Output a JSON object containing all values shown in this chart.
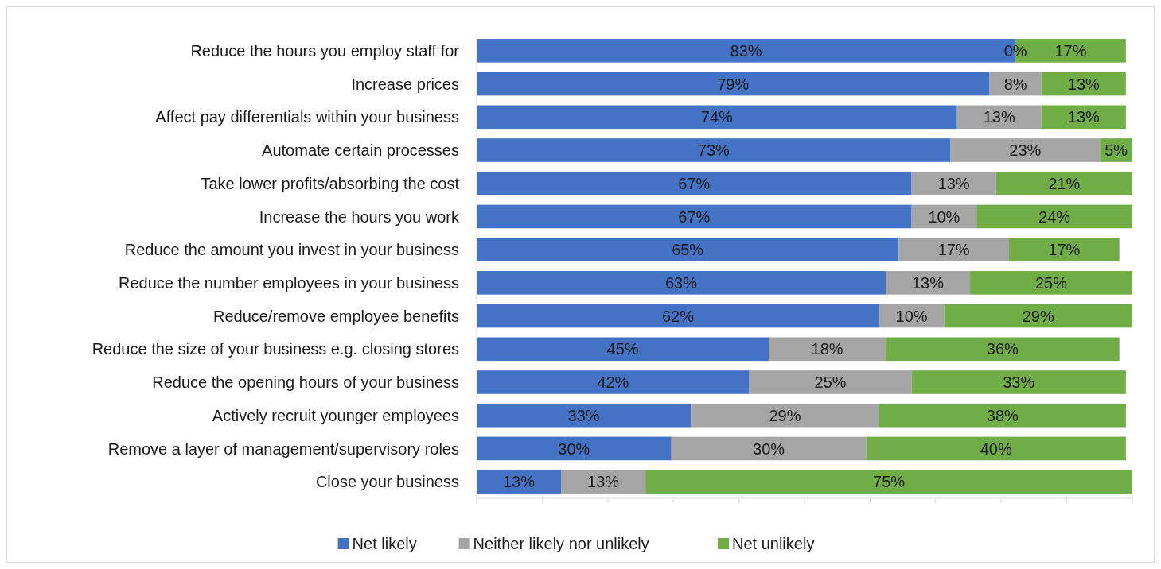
{
  "chart_data": {
    "type": "bar",
    "orientation": "horizontal",
    "stacked": true,
    "legend": "bottom",
    "tick_labels": "y",
    "categories": [
      "Reduce the hours you employ staff for",
      "Increase prices",
      "Affect pay differentials within your business",
      "Automate certain processes",
      "Take lower profits/absorbing the cost",
      "Increase the hours you work",
      "Reduce the amount you invest in your business",
      "Reduce the number employees in your business",
      "Reduce/remove employee benefits",
      "Reduce the size of your business e.g. closing stores",
      "Reduce the opening hours of your business",
      "Actively recruit younger employees",
      "Remove a layer of management/supervisory roles",
      "Close your business"
    ],
    "series": [
      {
        "name": "Net likely",
        "color": "#4472c4",
        "values": [
          83,
          79,
          74,
          73,
          67,
          67,
          65,
          63,
          62,
          45,
          42,
          33,
          30,
          13
        ],
        "value_labels": [
          "83%",
          "79%",
          "74%",
          "73%",
          "67%",
          "67%",
          "65%",
          "63%",
          "62%",
          "45%",
          "42%",
          "33%",
          "30%",
          "13%"
        ]
      },
      {
        "name": "Neither likely nor unlikely",
        "color": "#a5a5a5",
        "values": [
          0,
          8,
          13,
          23,
          13,
          10,
          17,
          13,
          10,
          18,
          25,
          29,
          30,
          13
        ],
        "value_labels": [
          "0%",
          "8%",
          "13%",
          "23%",
          "13%",
          "10%",
          "17%",
          "13%",
          "10%",
          "18%",
          "25%",
          "29%",
          "30%",
          "13%"
        ]
      },
      {
        "name": "Net unlikely",
        "color": "#70ad47",
        "values": [
          17,
          13,
          13,
          5,
          21,
          24,
          17,
          25,
          29,
          36,
          33,
          38,
          40,
          75
        ],
        "value_labels": [
          "17%",
          "13%",
          "13%",
          "5%",
          "21%",
          "24%",
          "17%",
          "25%",
          "29%",
          "36%",
          "33%",
          "38%",
          "40%",
          "75%"
        ]
      }
    ]
  }
}
